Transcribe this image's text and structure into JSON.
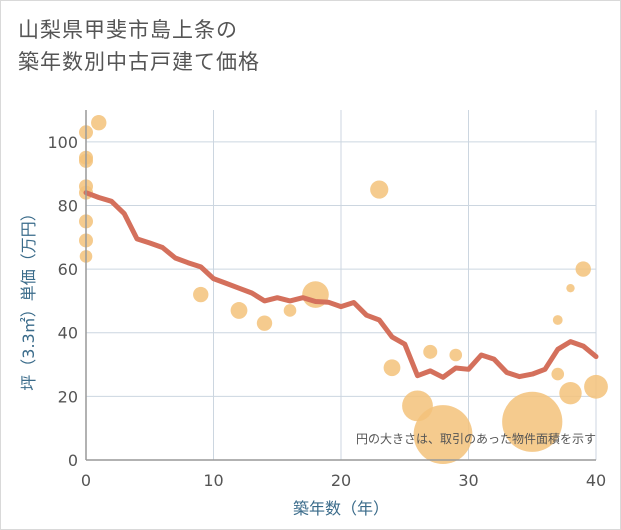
{
  "chart_data": {
    "type": "scatter",
    "title": "山梨県甲斐市島上条の築年数別中古戸建て価格",
    "title_lines": [
      "山梨県甲斐市島上条の",
      "築年数別中古戸建て価格"
    ],
    "xlabel": "築年数（年）",
    "ylabel": "坪（3.3㎡）単価（万円）",
    "xlim": [
      0,
      40
    ],
    "ylim": [
      0,
      110
    ],
    "x_ticks": [
      0,
      10,
      20,
      30,
      40
    ],
    "y_ticks": [
      0,
      20,
      40,
      60,
      80,
      100
    ],
    "grid": true,
    "note": "円の大きさは、取引のあった物件面積を示す",
    "colors": {
      "bubble": "#f3c27a",
      "trend": "#d4705c",
      "grid": "#ccd6e0",
      "frame": "#999999"
    },
    "bubbles": [
      {
        "x": 0,
        "y": 103,
        "size": 1.0
      },
      {
        "x": 1,
        "y": 106,
        "size": 1.1
      },
      {
        "x": 0,
        "y": 95,
        "size": 1.0
      },
      {
        "x": 0,
        "y": 94,
        "size": 1.0
      },
      {
        "x": 0,
        "y": 86,
        "size": 1.0
      },
      {
        "x": 0,
        "y": 84,
        "size": 1.0
      },
      {
        "x": 0,
        "y": 75,
        "size": 1.0
      },
      {
        "x": 0,
        "y": 69,
        "size": 1.0
      },
      {
        "x": 0,
        "y": 64,
        "size": 0.9
      },
      {
        "x": 9,
        "y": 52,
        "size": 1.1
      },
      {
        "x": 12,
        "y": 47,
        "size": 1.2
      },
      {
        "x": 14,
        "y": 43,
        "size": 1.1
      },
      {
        "x": 16,
        "y": 47,
        "size": 0.9
      },
      {
        "x": 18,
        "y": 52,
        "size": 1.9
      },
      {
        "x": 23,
        "y": 85,
        "size": 1.3
      },
      {
        "x": 24,
        "y": 29,
        "size": 1.2
      },
      {
        "x": 26,
        "y": 17,
        "size": 2.2
      },
      {
        "x": 27,
        "y": 34,
        "size": 1.0
      },
      {
        "x": 28,
        "y": 8,
        "size": 4.2
      },
      {
        "x": 29,
        "y": 33,
        "size": 0.9
      },
      {
        "x": 35,
        "y": 12,
        "size": 4.3
      },
      {
        "x": 37,
        "y": 44,
        "size": 0.7
      },
      {
        "x": 37,
        "y": 27,
        "size": 0.9
      },
      {
        "x": 38,
        "y": 54,
        "size": 0.6
      },
      {
        "x": 38,
        "y": 21,
        "size": 1.6
      },
      {
        "x": 39,
        "y": 60,
        "size": 1.1
      },
      {
        "x": 40,
        "y": 23,
        "size": 1.7
      }
    ],
    "trend": {
      "x": [
        0,
        1,
        2,
        3,
        4,
        5,
        6,
        7,
        8,
        9,
        10,
        11,
        12,
        13,
        14,
        15,
        16,
        17,
        18,
        19,
        20,
        21,
        22,
        23,
        24,
        25,
        26,
        27,
        28,
        29,
        30,
        31,
        32,
        33,
        34,
        35,
        36,
        37,
        38,
        39,
        40
      ],
      "y": [
        84,
        82.5,
        81.3,
        77.4,
        69.5,
        68.2,
        66.8,
        63.5,
        62,
        60.7,
        57,
        55.5,
        54,
        52.5,
        50,
        51,
        50,
        51,
        49.8,
        49.6,
        48.2,
        49.5,
        45.5,
        44,
        38.7,
        36.4,
        26.5,
        28,
        26,
        28.9,
        28.5,
        33,
        31.7,
        27.5,
        26.2,
        27,
        28.5,
        34.8,
        37.2,
        35.8,
        32.5
      ]
    }
  }
}
